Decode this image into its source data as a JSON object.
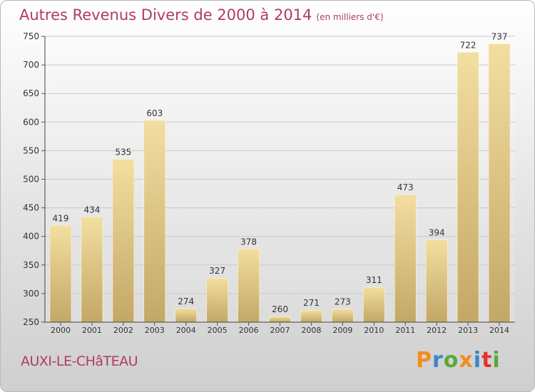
{
  "chart_data": {
    "type": "bar",
    "title": "Autres Revenus Divers de 2000 à 2014",
    "unit_note": "(en milliers d'€)",
    "categories": [
      "2000",
      "2001",
      "2002",
      "2003",
      "2004",
      "2005",
      "2006",
      "2007",
      "2008",
      "2009",
      "2010",
      "2011",
      "2012",
      "2013",
      "2014"
    ],
    "values": [
      419,
      434,
      535,
      603,
      274,
      327,
      378,
      260,
      271,
      273,
      311,
      473,
      394,
      722,
      737
    ],
    "ylim": [
      250,
      750
    ],
    "yticks": [
      250,
      300,
      350,
      400,
      450,
      500,
      550,
      600,
      650,
      700,
      750
    ],
    "grid": true,
    "colors": {
      "bar_top": "#f3dea0",
      "bar_bottom": "#c3a767",
      "title": "#b23a66"
    }
  },
  "footer": {
    "location": "AUXI-LE-CHâTEAU",
    "logo_text": "Proxiti",
    "logo_colors": [
      "#f58b1f",
      "#3a86c8",
      "#5aa83a",
      "#f58b1f",
      "#3a86c8",
      "#e4322d",
      "#5aa83a"
    ]
  }
}
